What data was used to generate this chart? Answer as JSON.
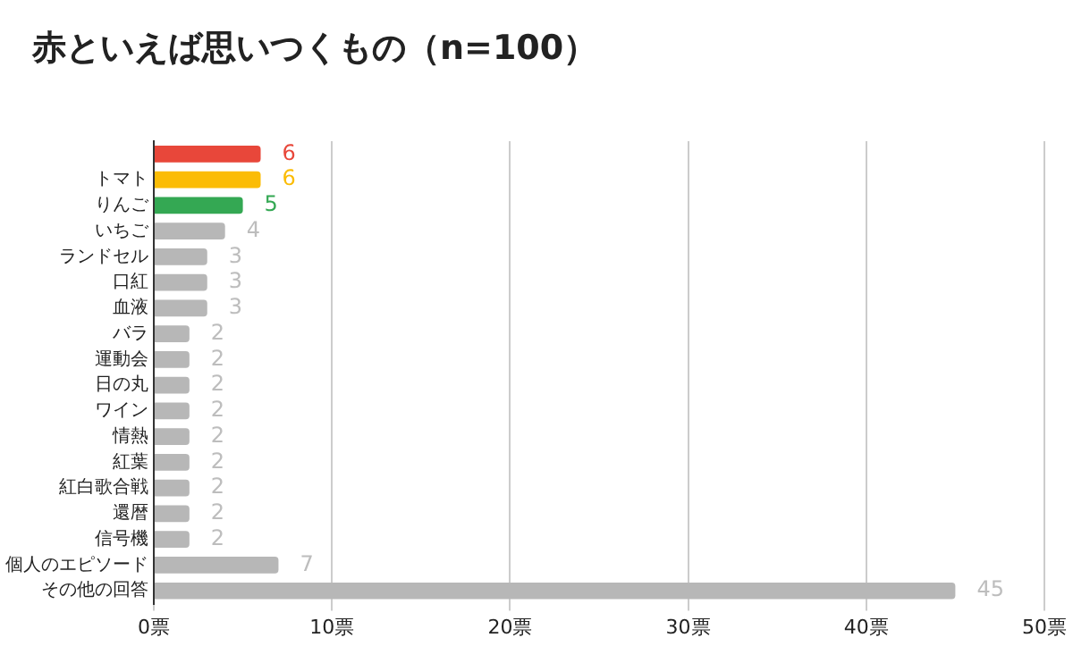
{
  "chart_data": {
    "type": "bar",
    "orientation": "horizontal",
    "title": "赤といえば思いつくもの（n=100）",
    "categories": [
      null,
      "トマト",
      "りんご",
      "いちご",
      "ランドセル",
      "口紅",
      "血液",
      "バラ",
      "運動会",
      "日の丸",
      "ワイン",
      "情熱",
      "紅葉",
      "紅白歌合戦",
      "還暦",
      "信号機",
      "個人のエピソード",
      "その他の回答"
    ],
    "values": [
      6,
      6,
      5,
      4,
      3,
      3,
      3,
      2,
      2,
      2,
      2,
      2,
      2,
      2,
      2,
      2,
      7,
      45
    ],
    "colors": [
      "#e8473a",
      "#fbbc05",
      "#34a853",
      "#b7b7b7",
      "#b7b7b7",
      "#b7b7b7",
      "#b7b7b7",
      "#b7b7b7",
      "#b7b7b7",
      "#b7b7b7",
      "#b7b7b7",
      "#b7b7b7",
      "#b7b7b7",
      "#b7b7b7",
      "#b7b7b7",
      "#b7b7b7",
      "#b7b7b7",
      "#b7b7b7"
    ],
    "xlim": [
      0,
      50
    ],
    "xticks": [
      {
        "value": 0,
        "label": "0票"
      },
      {
        "value": 10,
        "label": "10票"
      },
      {
        "value": 20,
        "label": "20票"
      },
      {
        "value": 30,
        "label": "30票"
      },
      {
        "value": 40,
        "label": "40票"
      },
      {
        "value": 50,
        "label": "50票"
      }
    ],
    "grid": "x",
    "data_labels": true,
    "legend": false
  }
}
